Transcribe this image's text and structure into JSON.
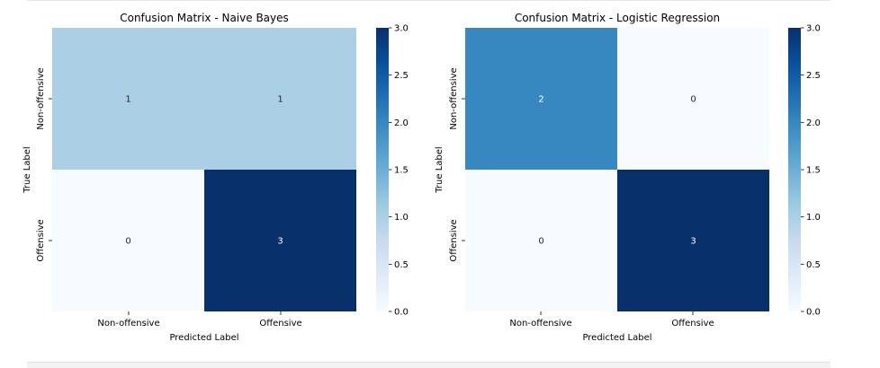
{
  "chart_data": [
    {
      "type": "heatmap",
      "title": "Confusion Matrix - Naive Bayes",
      "xlabel": "Predicted Label",
      "ylabel": "True Label",
      "x_categories": [
        "Non-offensive",
        "Offensive"
      ],
      "y_categories": [
        "Non-offensive",
        "Offensive"
      ],
      "values": [
        [
          1,
          1
        ],
        [
          0,
          3
        ]
      ],
      "colormap": "Blues",
      "vmin": 0,
      "vmax": 3,
      "colorbar_ticks": [
        "0.0",
        "0.5",
        "1.0",
        "1.5",
        "2.0",
        "2.5",
        "3.0"
      ]
    },
    {
      "type": "heatmap",
      "title": "Confusion Matrix - Logistic Regression",
      "xlabel": "Predicted Label",
      "ylabel": "True Label",
      "x_categories": [
        "Non-offensive",
        "Offensive"
      ],
      "y_categories": [
        "Non-offensive",
        "Offensive"
      ],
      "values": [
        [
          2,
          0
        ],
        [
          0,
          3
        ]
      ],
      "colormap": "Blues",
      "vmin": 0,
      "vmax": 3,
      "colorbar_ticks": [
        "0.0",
        "0.5",
        "1.0",
        "1.5",
        "2.0",
        "2.5",
        "3.0"
      ]
    }
  ],
  "colors": {
    "blues_scale": [
      "#f7fbff",
      "#deebf7",
      "#c6dbef",
      "#9ecae1",
      "#6baed6",
      "#4292c6",
      "#2171b5",
      "#08519c",
      "#08306b"
    ],
    "dark_text": "#262626",
    "light_text": "#ffffff"
  }
}
